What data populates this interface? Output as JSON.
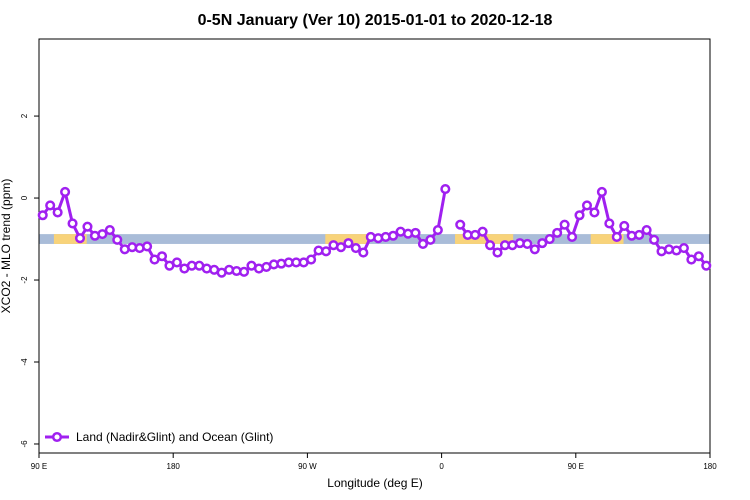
{
  "chart_data": {
    "type": "line",
    "title": "0-5N January (Ver 10)   2015-01-01 to 2020-12-18",
    "xlabel": "Longitude (deg E)",
    "ylabel": "XCO2 - MLO trend (ppm)",
    "xlim": [
      90,
      540
    ],
    "ylim": [
      -6.22,
      3.88
    ],
    "xticks": [
      {
        "value": 90,
        "label": "90 E"
      },
      {
        "value": 180,
        "label": "180"
      },
      {
        "value": 270,
        "label": "90 W"
      },
      {
        "value": 360,
        "label": "0"
      },
      {
        "value": 450,
        "label": "90 E"
      },
      {
        "value": 540,
        "label": "180"
      }
    ],
    "yticks": [
      2,
      0,
      -2,
      -4,
      -6
    ],
    "reference_band": {
      "y": [
        -1.12,
        -0.88
      ],
      "color": "#a9bcd8",
      "land": [
        [
          100,
          122
        ],
        [
          282,
          310
        ],
        [
          369,
          408
        ],
        [
          460,
          482
        ]
      ],
      "land_color": "#f8d37a"
    },
    "legend": "bottom-left",
    "x": [
      92.5,
      97.5,
      102.5,
      107.5,
      112.5,
      117.5,
      122.5,
      127.5,
      132.5,
      137.5,
      142.5,
      147.5,
      152.5,
      157.5,
      162.5,
      167.5,
      172.5,
      177.5,
      182.5,
      187.5,
      192.5,
      197.5,
      202.5,
      207.5,
      212.5,
      217.5,
      222.5,
      227.5,
      232.5,
      237.5,
      242.5,
      247.5,
      252.5,
      257.5,
      262.5,
      267.5,
      272.5,
      277.5,
      282.5,
      287.5,
      292.5,
      297.5,
      302.5,
      307.5,
      312.5,
      317.5,
      322.5,
      327.5,
      332.5,
      337.5,
      342.5,
      347.5,
      352.5,
      357.5,
      362.5,
      367.5,
      372.5,
      377.5,
      382.5,
      387.5,
      392.5,
      397.5,
      402.5,
      407.5,
      412.5,
      417.5,
      422.5,
      427.5,
      432.5,
      437.5,
      442.5,
      447.5,
      452.5,
      457.5,
      462.5,
      467.5,
      472.5,
      477.5,
      482.5,
      487.5,
      492.5,
      497.5,
      502.5,
      507.5,
      512.5,
      517.5,
      522.5,
      527.5,
      532.5,
      537.5
    ],
    "series": [
      {
        "name": "Land (Nadir&Glint) and Ocean (Glint)",
        "color": "#a020f0",
        "values": [
          -0.42,
          -0.18,
          -0.35,
          0.15,
          -0.62,
          -0.98,
          -0.7,
          -0.92,
          -0.88,
          -0.78,
          -1.02,
          -1.25,
          -1.2,
          -1.22,
          -1.18,
          -1.5,
          -1.42,
          -1.65,
          -1.57,
          -1.72,
          -1.65,
          -1.65,
          -1.72,
          -1.75,
          -1.82,
          -1.75,
          -1.78,
          -1.8,
          -1.65,
          -1.72,
          -1.68,
          -1.62,
          -1.6,
          -1.57,
          -1.57,
          -1.57,
          -1.5,
          -1.28,
          -1.3,
          -1.15,
          -1.2,
          -1.1,
          -1.22,
          -1.33,
          -0.95,
          -0.98,
          -0.95,
          -0.92,
          -0.82,
          -0.87,
          -0.85,
          -1.12,
          -1.02,
          -0.78,
          0.22,
          null,
          -0.65,
          -0.9,
          -0.9,
          -0.82,
          -1.15,
          -1.33,
          -1.15,
          -1.15,
          -1.1,
          -1.12,
          -1.25,
          -1.1,
          -1.0,
          -0.85,
          -0.65,
          -0.95,
          -0.42,
          -0.18,
          -0.35,
          0.15,
          -0.62,
          -0.95,
          -0.68,
          -0.92,
          -0.9,
          -0.78,
          -1.02,
          -1.3,
          -1.25,
          -1.28,
          -1.22,
          -1.5,
          -1.42,
          -1.65
        ]
      }
    ]
  }
}
